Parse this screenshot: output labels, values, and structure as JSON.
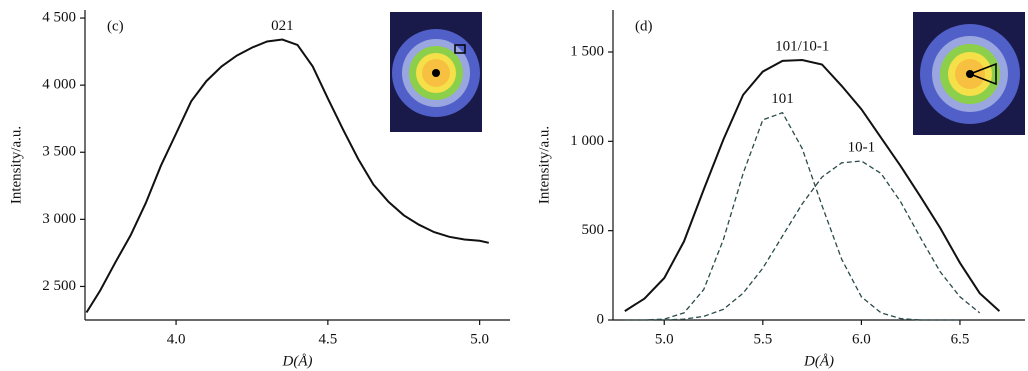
{
  "chart_data": [
    {
      "type": "line",
      "panel_label": "(c)",
      "x_label": "D(Å)",
      "y_label": "Intensity/a.u.",
      "xlim": [
        3.7,
        5.1
      ],
      "ylim": [
        2250,
        4560
      ],
      "xticks": [
        {
          "value": 4,
          "label": "4.0"
        },
        4.5,
        {
          "value": 5,
          "label": "5.0"
        }
      ],
      "yticks": [
        {
          "value": 2500,
          "label": "2 500"
        },
        {
          "value": 3000,
          "label": "3 000"
        },
        {
          "value": 3500,
          "label": "3 500"
        },
        {
          "value": 4000,
          "label": "4 000"
        },
        {
          "value": 4500,
          "label": "4 500"
        }
      ],
      "x": [
        3.705,
        3.75,
        3.8,
        3.85,
        3.9,
        3.95,
        4.0,
        4.05,
        4.1,
        4.15,
        4.2,
        4.25,
        4.3,
        4.35,
        4.4,
        4.45,
        4.5,
        4.55,
        4.6,
        4.65,
        4.7,
        4.75,
        4.8,
        4.85,
        4.9,
        4.95,
        5.0,
        5.03
      ],
      "series": [
        {
          "name": "021",
          "color": "#111111",
          "dashed": false,
          "values": [
            2306,
            2470,
            2680,
            2880,
            3120,
            3400,
            3640,
            3880,
            4030,
            4140,
            4220,
            4280,
            4325,
            4340,
            4300,
            4140,
            3900,
            3670,
            3450,
            3260,
            3130,
            3030,
            2960,
            2905,
            2870,
            2850,
            2840,
            2825
          ]
        }
      ]
    },
    {
      "type": "line",
      "panel_label": "(d)",
      "x_label": "D(Å)",
      "y_label": "Intensity/a.u.",
      "xlim": [
        4.74,
        6.83
      ],
      "ylim": [
        0,
        1735
      ],
      "xticks": [
        {
          "value": 5,
          "label": "5.0"
        },
        5.5,
        {
          "value": 6,
          "label": "6.0"
        },
        6.5
      ],
      "yticks": [
        0,
        500,
        {
          "value": 1000,
          "label": "1 000"
        },
        {
          "value": 1500,
          "label": "1 500"
        }
      ],
      "x": [
        4.8,
        4.9,
        5.0,
        5.1,
        5.2,
        5.3,
        5.4,
        5.5,
        5.6,
        5.7,
        5.8,
        5.9,
        6.0,
        6.1,
        6.2,
        6.3,
        6.4,
        6.5,
        6.6,
        6.7
      ],
      "series": [
        {
          "name": "101/10-1",
          "color": "#111111",
          "dashed": false,
          "values": [
            50,
            120,
            235,
            440,
            730,
            1010,
            1260,
            1390,
            1450,
            1455,
            1430,
            1310,
            1180,
            1020,
            860,
            690,
            515,
            320,
            150,
            50
          ]
        },
        {
          "name": "101",
          "color": "#2a4a4a",
          "dashed": true,
          "values": [
            0,
            0,
            5,
            40,
            170,
            450,
            820,
            1120,
            1160,
            960,
            640,
            340,
            130,
            40,
            8,
            0,
            0,
            0,
            null,
            null
          ]
        },
        {
          "name": "10-1",
          "color": "#2a4a4a",
          "dashed": true,
          "values": [
            null,
            null,
            0,
            5,
            20,
            60,
            150,
            290,
            470,
            650,
            800,
            880,
            890,
            820,
            660,
            460,
            270,
            130,
            40,
            null
          ]
        }
      ]
    }
  ]
}
